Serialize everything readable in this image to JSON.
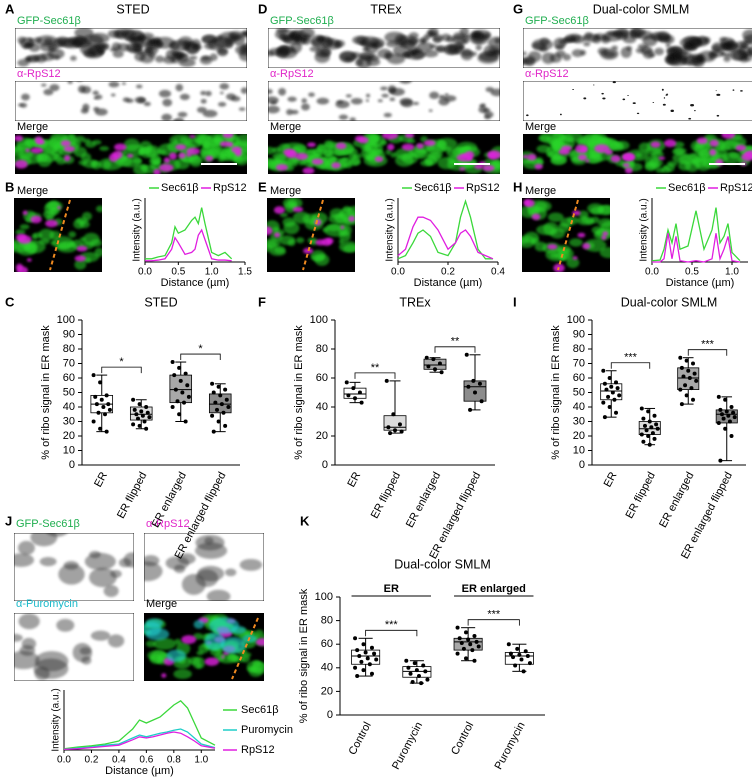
{
  "figure": {
    "panel_labels": [
      "A",
      "B",
      "C",
      "D",
      "E",
      "F",
      "G",
      "H",
      "I",
      "J",
      "K"
    ],
    "image_rows": [
      {
        "title": "STED",
        "channels": [
          "GFP-Sec61β",
          "α-RpS12",
          "Merge"
        ]
      },
      {
        "title": "TREx",
        "channels": [
          "GFP-Sec61β",
          "α-RpS12",
          "Merge"
        ]
      },
      {
        "title": "Dual-color SMLM",
        "channels": [
          "GFP-Sec61β",
          "α-RpS12",
          "Merge"
        ]
      }
    ],
    "merge_crops": [
      "Merge",
      "Merge",
      "Merge"
    ],
    "j_images": [
      "GFP-Sec61β",
      "α-RpS12",
      "α-Puromycin",
      "Merge"
    ]
  },
  "chart_data": [
    {
      "type": "line",
      "xlabel": "Distance (µm)",
      "ylabel": "Intensity (a.u.)",
      "x": [
        0,
        0.1,
        0.2,
        0.3,
        0.4,
        0.45,
        0.5,
        0.6,
        0.7,
        0.75,
        0.8,
        0.85,
        0.9,
        1.0,
        1.1,
        1.2,
        1.3
      ],
      "xlim": [
        0,
        1.5
      ],
      "xticks": [
        {
          "value": 0,
          "label": "0.0"
        },
        0.5,
        {
          "value": 1,
          "label": "1.0"
        },
        1.5
      ],
      "ylim": [
        0,
        1
      ],
      "series": [
        {
          "name": "Sec61β",
          "color": "#3bd83b",
          "values": [
            0.05,
            0.05,
            0.08,
            0.1,
            0.3,
            0.55,
            0.45,
            0.5,
            0.65,
            0.7,
            0.6,
            0.85,
            0.6,
            0.15,
            0.1,
            0.15,
            0.05
          ]
        },
        {
          "name": "RpS12",
          "color": "#e01ee0",
          "values": [
            0.02,
            0.02,
            0.03,
            0.05,
            0.2,
            0.38,
            0.3,
            0.12,
            0.15,
            0.2,
            0.42,
            0.5,
            0.35,
            0.05,
            0.03,
            0.03,
            0.02
          ]
        }
      ]
    },
    {
      "type": "line",
      "xlabel": "Distance (µm)",
      "ylabel": "Intensity (a.u.)",
      "x": [
        0,
        0.03,
        0.06,
        0.08,
        0.1,
        0.13,
        0.16,
        0.2,
        0.23,
        0.25,
        0.27,
        0.29,
        0.32,
        0.35,
        0.38
      ],
      "xlim": [
        0,
        0.4
      ],
      "xticks": [
        {
          "value": 0,
          "label": "0.0"
        },
        0.2,
        0.4
      ],
      "ylim": [
        0,
        1
      ],
      "series": [
        {
          "name": "Sec61β",
          "color": "#3bd83b",
          "values": [
            0.05,
            0.1,
            0.3,
            0.45,
            0.5,
            0.4,
            0.15,
            0.1,
            0.3,
            0.7,
            0.95,
            0.7,
            0.2,
            0.05,
            0.05
          ]
        },
        {
          "name": "RpS12",
          "color": "#e01ee0",
          "values": [
            0.1,
            0.2,
            0.55,
            0.7,
            0.7,
            0.65,
            0.5,
            0.2,
            0.3,
            0.45,
            0.5,
            0.4,
            0.15,
            0.1,
            0.05
          ]
        }
      ]
    },
    {
      "type": "line",
      "xlabel": "Distance (µm)",
      "ylabel": "Intensity (a.u.)",
      "x": [
        0,
        0.1,
        0.15,
        0.2,
        0.25,
        0.3,
        0.35,
        0.45,
        0.55,
        0.65,
        0.75,
        0.8,
        0.85,
        0.9,
        0.95,
        1.0,
        1.1
      ],
      "xlim": [
        0,
        1.2
      ],
      "xticks": [
        {
          "value": 0,
          "label": "0.0"
        },
        0.5,
        {
          "value": 1,
          "label": "1.0"
        }
      ],
      "ylim": [
        0,
        1
      ],
      "series": [
        {
          "name": "Sec61β",
          "color": "#3bd83b",
          "values": [
            0.02,
            0.03,
            0.2,
            0.5,
            0.3,
            0.6,
            0.2,
            0.25,
            0.8,
            0.2,
            0.5,
            0.85,
            0.3,
            0.4,
            0.6,
            0.15,
            0.02
          ]
        },
        {
          "name": "RpS12",
          "color": "#e01ee0",
          "values": [
            0,
            0,
            0.05,
            0.45,
            0.05,
            0.4,
            0.02,
            0,
            0.02,
            0,
            0.05,
            0.45,
            0.05,
            0.2,
            0.4,
            0.02,
            0
          ]
        }
      ]
    },
    {
      "type": "box",
      "title": "STED",
      "ylabel": "% of ribo signal in ER mask",
      "categories": [
        "ER",
        "ER flipped",
        "ER enlarged",
        "ER enlarged flipped"
      ],
      "colors": [
        "#ffffff",
        "#dcdcdc",
        "#a8a8a8",
        "#8c8c8c"
      ],
      "ylim": [
        0,
        100
      ],
      "yticks": [
        0,
        10,
        20,
        30,
        40,
        50,
        60,
        70,
        80,
        90,
        100
      ],
      "boxes": [
        {
          "min": 23,
          "q1": 36,
          "median": 42,
          "q3": 48,
          "max": 62,
          "points": [
            62,
            57,
            48,
            47,
            45,
            42,
            42,
            40,
            38,
            36,
            35,
            30,
            25,
            23
          ]
        },
        {
          "min": 25,
          "q1": 31,
          "median": 35,
          "q3": 40,
          "max": 45,
          "points": [
            45,
            42,
            40,
            38,
            37,
            36,
            35,
            34,
            33,
            32,
            30,
            28,
            27,
            25
          ]
        },
        {
          "min": 30,
          "q1": 43,
          "median": 52,
          "q3": 62,
          "max": 71,
          "points": [
            71,
            67,
            63,
            62,
            58,
            55,
            52,
            50,
            47,
            44,
            43,
            40,
            35,
            30
          ]
        },
        {
          "min": 23,
          "q1": 36,
          "median": 42,
          "q3": 49,
          "max": 56,
          "points": [
            56,
            54,
            52,
            50,
            48,
            45,
            43,
            42,
            40,
            38,
            36,
            34,
            30,
            27,
            23
          ]
        }
      ],
      "significance": [
        "*",
        "*"
      ]
    },
    {
      "type": "box",
      "title": "TREx",
      "ylabel": "% of ribo signal in ER mask",
      "categories": [
        "ER",
        "ER flipped",
        "ER enlarged",
        "ER enlarged flipped"
      ],
      "colors": [
        "#ffffff",
        "#dcdcdc",
        "#a8a8a8",
        "#8c8c8c"
      ],
      "ylim": [
        0,
        100
      ],
      "yticks": [
        0,
        20,
        40,
        60,
        80,
        100
      ],
      "boxes": [
        {
          "min": 43,
          "q1": 46,
          "median": 49,
          "q3": 53,
          "max": 57,
          "points": [
            57,
            53,
            50,
            48,
            46,
            43
          ]
        },
        {
          "min": 22,
          "q1": 24,
          "median": 26,
          "q3": 34,
          "max": 58,
          "points": [
            58,
            35,
            28,
            26,
            24,
            23,
            22
          ]
        },
        {
          "min": 64,
          "q1": 66,
          "median": 69,
          "q3": 73,
          "max": 74,
          "points": [
            74,
            73,
            70,
            68,
            66,
            64
          ]
        },
        {
          "min": 38,
          "q1": 44,
          "median": 54,
          "q3": 58,
          "max": 76,
          "points": [
            76,
            58,
            56,
            54,
            50,
            44,
            38
          ]
        }
      ],
      "significance": [
        "**",
        "**"
      ]
    },
    {
      "type": "box",
      "title": "Dual-color SMLM",
      "ylabel": "% of ribo signal in ER mask",
      "categories": [
        "ER",
        "ER flipped",
        "ER enlarged",
        "ER enlarged flipped"
      ],
      "colors": [
        "#ffffff",
        "#dcdcdc",
        "#a8a8a8",
        "#8c8c8c"
      ],
      "ylim": [
        0,
        100
      ],
      "yticks": [
        0,
        10,
        20,
        30,
        40,
        50,
        60,
        70,
        80,
        90,
        100
      ],
      "boxes": [
        {
          "min": 33,
          "q1": 45,
          "median": 51,
          "q3": 56,
          "max": 65,
          "points": [
            65,
            60,
            57,
            56,
            54,
            53,
            52,
            50,
            48,
            47,
            45,
            43,
            40,
            36,
            33
          ]
        },
        {
          "min": 14,
          "q1": 21,
          "median": 25,
          "q3": 30,
          "max": 39,
          "points": [
            39,
            37,
            34,
            32,
            30,
            28,
            27,
            26,
            25,
            24,
            22,
            21,
            20,
            18,
            16,
            14
          ]
        },
        {
          "min": 42,
          "q1": 52,
          "median": 60,
          "q3": 67,
          "max": 74,
          "points": [
            74,
            72,
            70,
            67,
            65,
            63,
            61,
            60,
            58,
            55,
            53,
            52,
            48,
            45,
            42
          ]
        },
        {
          "min": 3,
          "q1": 29,
          "median": 35,
          "q3": 38,
          "max": 47,
          "points": [
            47,
            45,
            40,
            38,
            37,
            36,
            35,
            34,
            33,
            32,
            30,
            29,
            25,
            20,
            3
          ]
        }
      ],
      "significance": [
        "***",
        "***"
      ]
    },
    {
      "type": "line",
      "xlabel": "Distance (µm)",
      "ylabel": "Intensity (a.u.)",
      "x": [
        0,
        0.1,
        0.2,
        0.3,
        0.4,
        0.5,
        0.55,
        0.6,
        0.65,
        0.7,
        0.75,
        0.8,
        0.85,
        0.9,
        0.95,
        1.0,
        1.1
      ],
      "xlim": [
        0,
        1.1
      ],
      "xticks": [
        {
          "value": 0,
          "label": "0.0"
        },
        0.2,
        0.4,
        0.6,
        0.8,
        {
          "value": 1,
          "label": "1.0"
        }
      ],
      "ylim": [
        0,
        1
      ],
      "legend": "right",
      "series": [
        {
          "name": "Sec61β",
          "color": "#3bd83b",
          "values": [
            0.02,
            0.05,
            0.07,
            0.1,
            0.15,
            0.35,
            0.5,
            0.45,
            0.5,
            0.55,
            0.65,
            0.75,
            0.82,
            0.7,
            0.45,
            0.2,
            0.08
          ]
        },
        {
          "name": "Puromycin",
          "color": "#1ecdc8",
          "values": [
            0.01,
            0.03,
            0.05,
            0.08,
            0.1,
            0.2,
            0.25,
            0.22,
            0.25,
            0.28,
            0.3,
            0.33,
            0.35,
            0.3,
            0.2,
            0.1,
            0.04
          ]
        },
        {
          "name": "RpS12",
          "color": "#e01ee0",
          "values": [
            0.01,
            0.02,
            0.04,
            0.06,
            0.08,
            0.17,
            0.22,
            0.2,
            0.22,
            0.25,
            0.28,
            0.3,
            0.28,
            0.22,
            0.15,
            0.07,
            0.03
          ]
        }
      ]
    },
    {
      "type": "box",
      "title": "Dual-color SMLM",
      "ylabel": "% of ribo signal in ER mask",
      "categories": [
        "Control",
        "Puromycin",
        "Control",
        "Puromycin"
      ],
      "groups": [
        "ER",
        "ER enlarged"
      ],
      "colors": [
        "#ffffff",
        "#ffffff",
        "#a8a8a8",
        "#ffffff"
      ],
      "ylim": [
        0,
        100
      ],
      "yticks": [
        0,
        20,
        40,
        60,
        80,
        100
      ],
      "boxes": [
        {
          "min": 33,
          "q1": 43,
          "median": 50,
          "q3": 55,
          "max": 65,
          "points": [
            65,
            60,
            57,
            55,
            53,
            52,
            50,
            48,
            47,
            45,
            43,
            40,
            38,
            35,
            33
          ]
        },
        {
          "min": 27,
          "q1": 32,
          "median": 37,
          "q3": 41,
          "max": 46,
          "points": [
            46,
            44,
            42,
            40,
            38,
            37,
            35,
            33,
            30,
            28,
            27
          ]
        },
        {
          "min": 46,
          "q1": 55,
          "median": 62,
          "q3": 65,
          "max": 74,
          "points": [
            74,
            70,
            67,
            65,
            64,
            62,
            61,
            60,
            58,
            56,
            55,
            52,
            48,
            46
          ]
        },
        {
          "min": 37,
          "q1": 43,
          "median": 50,
          "q3": 53,
          "max": 60,
          "points": [
            60,
            56,
            54,
            52,
            51,
            50,
            49,
            47,
            44,
            42,
            37
          ]
        }
      ],
      "significance": [
        "***",
        "***"
      ]
    }
  ]
}
